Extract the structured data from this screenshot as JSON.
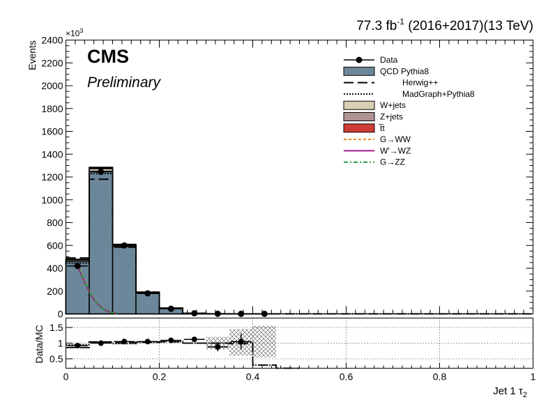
{
  "header": {
    "lumi_value": "77.3 fb",
    "lumi_exp": "-1",
    "lumi_rest": " (2016+2017)(13 TeV)"
  },
  "cms_label": "CMS",
  "preliminary_label": "Preliminary",
  "chart_data": [
    {
      "type": "histogram",
      "ylabel": "Events",
      "y_multiplier": "×10",
      "y_multiplier_exp": "3",
      "xlim": [
        0,
        1
      ],
      "ylim": [
        0,
        2400
      ],
      "x_ticks": [
        0,
        0.2,
        0.4,
        0.6,
        0.8,
        1
      ],
      "y_ticks": [
        0,
        200,
        400,
        600,
        800,
        1000,
        1200,
        1400,
        1600,
        1800,
        2000,
        2200,
        2400
      ],
      "bin_edges": [
        0,
        0.05,
        0.1,
        0.15,
        0.2,
        0.25,
        0.3,
        0.35,
        0.4,
        0.45,
        0.5,
        0.55,
        0.6,
        0.65,
        0.7,
        0.75,
        0.8,
        0.85,
        0.9,
        0.95,
        1.0
      ],
      "series": [
        {
          "name": "QCD Pythia8",
          "style": "filled",
          "color": "#6b8799",
          "values": [
            460,
            1250,
            590,
            185,
            50,
            5,
            1,
            0.3,
            0.1,
            0,
            0,
            0,
            0,
            0,
            0,
            0,
            0,
            0,
            0,
            0
          ]
        },
        {
          "name": "Herwig++",
          "style": "long-dash",
          "color": "#000000",
          "values": [
            490,
            1180,
            585,
            180,
            48,
            5,
            1,
            0.3,
            0.1,
            0,
            0,
            0,
            0,
            0,
            0,
            0,
            0,
            0,
            0,
            0
          ]
        },
        {
          "name": "MadGraph+Pythia8",
          "style": "dotted",
          "color": "#000000",
          "values": [
            445,
            1230,
            610,
            182,
            47,
            5,
            1,
            0.3,
            0.1,
            0,
            0,
            0,
            0,
            0,
            0,
            0,
            0,
            0,
            0,
            0
          ]
        },
        {
          "name": "W+jets",
          "style": "filled",
          "color": "#d8d0b4",
          "values": [
            12,
            22,
            12,
            4,
            1,
            0,
            0,
            0,
            0,
            0,
            0,
            0,
            0,
            0,
            0,
            0,
            0,
            0,
            0,
            0
          ]
        },
        {
          "name": "Z+jets",
          "style": "filled",
          "color": "#b09493",
          "values": [
            5,
            9,
            5,
            2,
            0.5,
            0,
            0,
            0,
            0,
            0,
            0,
            0,
            0,
            0,
            0,
            0,
            0,
            0,
            0,
            0
          ]
        },
        {
          "name": "t̅t",
          "style": "filled",
          "color": "#d13c36",
          "values": [
            2,
            4,
            2,
            1,
            0.2,
            0,
            0,
            0,
            0,
            0,
            0,
            0,
            0,
            0,
            0,
            0,
            0,
            0,
            0,
            0
          ]
        }
      ],
      "signals": [
        {
          "name": "G→WW",
          "style": "dashed",
          "color": "#f08a18",
          "x": [
            0.025,
            0.03,
            0.04,
            0.05,
            0.06,
            0.07,
            0.08,
            0.09,
            0.1,
            0.11
          ],
          "y": [
            430,
            380,
            290,
            200,
            130,
            80,
            45,
            22,
            10,
            4
          ]
        },
        {
          "name": "W'→WZ",
          "style": "solid",
          "color": "#a0148e",
          "x": [
            0.025,
            0.03,
            0.04,
            0.05,
            0.06,
            0.07,
            0.08,
            0.09,
            0.1,
            0.11
          ],
          "y": [
            420,
            370,
            280,
            195,
            125,
            78,
            44,
            21,
            10,
            4
          ]
        },
        {
          "name": "G→ZZ",
          "style": "dash-dot",
          "color": "#1f9b38",
          "x": [
            0.025,
            0.03,
            0.04,
            0.05,
            0.06,
            0.07,
            0.08,
            0.09,
            0.1,
            0.11
          ],
          "y": [
            425,
            375,
            285,
            198,
            128,
            79,
            44,
            21,
            10,
            4
          ]
        }
      ],
      "data": {
        "name": "Data",
        "x": [
          0.025,
          0.075,
          0.125,
          0.175,
          0.225,
          0.275,
          0.325,
          0.375,
          0.425
        ],
        "y": [
          420,
          1245,
          600,
          180,
          45,
          5,
          1,
          0.3,
          0.1
        ]
      }
    },
    {
      "type": "ratio",
      "ylabel": "Data/MC",
      "xlabel": "Jet 1 τ",
      "xlabel_sub": "2",
      "xlim": [
        0,
        1
      ],
      "ylim": [
        0.2,
        1.8
      ],
      "x_ticks": [
        0,
        0.2,
        0.4,
        0.6,
        0.8,
        1
      ],
      "y_ticks": [
        0.5,
        1,
        1.5
      ],
      "ratio_points": [
        {
          "x": 0.025,
          "y": 0.92,
          "err": 0.03
        },
        {
          "x": 0.075,
          "y": 1.0,
          "err": 0.02
        },
        {
          "x": 0.125,
          "y": 1.05,
          "err": 0.03
        },
        {
          "x": 0.175,
          "y": 1.05,
          "err": 0.04
        },
        {
          "x": 0.225,
          "y": 1.09,
          "err": 0.05
        },
        {
          "x": 0.275,
          "y": 1.12,
          "err": 0.07
        },
        {
          "x": 0.325,
          "y": 0.88,
          "err": 0.14
        },
        {
          "x": 0.375,
          "y": 1.05,
          "err": 0.25
        }
      ],
      "herwig_ratio": [
        0.86,
        1.04,
        1.01,
        1.03,
        1.04,
        1.0,
        1.0,
        0.98,
        0.3,
        0.0
      ],
      "madgraph_ratio": [
        0.95,
        1.02,
        0.98,
        1.02,
        1.06,
        1.0,
        1.0,
        1.02,
        0.3,
        0.0
      ],
      "stat_band": [
        {
          "x0": 0.3,
          "x1": 0.35,
          "lo": 0.8,
          "hi": 1.2
        },
        {
          "x0": 0.35,
          "x1": 0.4,
          "lo": 0.6,
          "hi": 1.45
        },
        {
          "x0": 0.4,
          "x1": 0.45,
          "lo": 0.55,
          "hi": 1.55
        }
      ]
    }
  ]
}
